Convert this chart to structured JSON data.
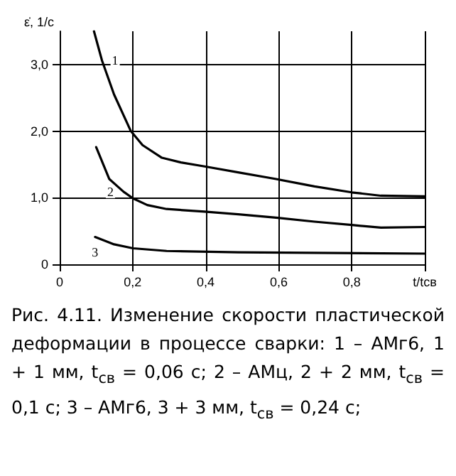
{
  "chart_data": {
    "type": "line",
    "ylabel": "ε̇, 1/с",
    "xlim": [
      0,
      1
    ],
    "xticks": [
      0,
      {
        "value": 0.2,
        "label": "0,2"
      },
      {
        "value": 0.4,
        "label": "0,4"
      },
      {
        "value": 0.6,
        "label": "0,6"
      },
      {
        "value": 0.8,
        "label": "0,8"
      },
      {
        "value": 1,
        "label": "t/tсв"
      }
    ],
    "ylim": [
      0,
      3.5
    ],
    "yticks": [
      0,
      {
        "value": 1,
        "label": "1,0"
      },
      {
        "value": 2,
        "label": "2,0"
      },
      {
        "value": 3,
        "label": "3,0"
      }
    ],
    "grid": true,
    "legend": false,
    "marker": "none",
    "line_style": "solid",
    "series": [
      {
        "name": "1",
        "color": "#000000",
        "x": [
          0.094,
          0.116,
          0.149,
          0.195,
          0.227,
          0.28,
          0.332,
          0.397,
          0.489,
          0.593,
          0.698,
          0.8,
          0.88,
          1.0
        ],
        "values": [
          3.5,
          3.06,
          2.55,
          2.0,
          1.79,
          1.6,
          1.53,
          1.47,
          1.38,
          1.28,
          1.17,
          1.08,
          1.03,
          1.02
        ]
      },
      {
        "name": "2",
        "color": "#000000",
        "x": [
          0.1,
          0.136,
          0.175,
          0.201,
          0.24,
          0.293,
          0.397,
          0.489,
          0.593,
          0.698,
          0.8,
          0.88,
          1.0
        ],
        "values": [
          1.76,
          1.28,
          1.09,
          0.99,
          0.89,
          0.83,
          0.79,
          0.75,
          0.7,
          0.64,
          0.59,
          0.55,
          0.56
        ]
      },
      {
        "name": "3",
        "color": "#000000",
        "x": [
          0.097,
          0.149,
          0.201,
          0.293,
          0.489,
          1.0
        ],
        "values": [
          0.41,
          0.3,
          0.24,
          0.2,
          0.18,
          0.16
        ]
      }
    ],
    "annotations": [
      "Рис. 4.11. Изменение скорости пластической деформации в процессе сварки: 1 – АМг6, 1 + 1 мм, t$_{св}$ = 0,06 с; 2 – АМц, 2 + 2 мм, t$_{св}$ = 0,1 с; 3 – АМг6, 3 + 3 мм, t$_{св}$ = 0,24 с;"
    ]
  }
}
